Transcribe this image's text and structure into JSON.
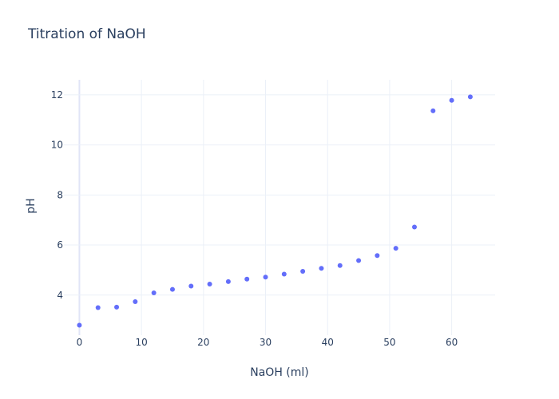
{
  "chart_data": {
    "type": "scatter",
    "title": "Titration of NaOH",
    "xlabel": "NaOH (ml)",
    "ylabel": "pH",
    "xlim": [
      -2.5,
      67
    ],
    "ylim": [
      2.4,
      12.6
    ],
    "xticks": [
      0,
      10,
      20,
      30,
      40,
      50,
      60
    ],
    "yticks": [
      4,
      6,
      8,
      10,
      12
    ],
    "grid": true,
    "marker_color": "#636efa",
    "series": [
      {
        "x": [
          0,
          3,
          6,
          9,
          12,
          15,
          18,
          21,
          24,
          27,
          30,
          33,
          36,
          39,
          42,
          45,
          48,
          51,
          54,
          57,
          60,
          63
        ],
        "y": [
          2.8,
          3.5,
          3.52,
          3.74,
          4.09,
          4.23,
          4.36,
          4.44,
          4.54,
          4.64,
          4.72,
          4.84,
          4.95,
          5.07,
          5.18,
          5.38,
          5.58,
          5.87,
          6.72,
          11.36,
          11.78,
          11.92
        ]
      }
    ]
  }
}
